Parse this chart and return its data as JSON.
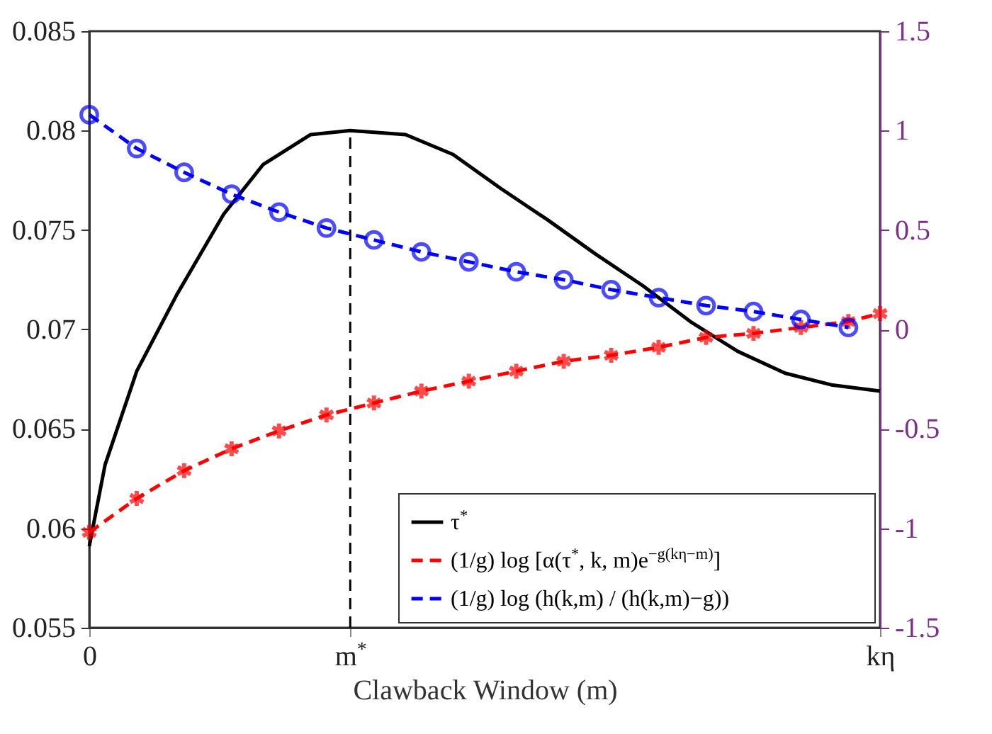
{
  "chart_data": {
    "type": "line",
    "xlabel": "Clawback Window (m)",
    "categories": [
      "0",
      null,
      null,
      null,
      null,
      null,
      null,
      null,
      null,
      null,
      null,
      null,
      null,
      null,
      null,
      null,
      null,
      null,
      null,
      null,
      null,
      null,
      null,
      null,
      null,
      null,
      null,
      null,
      null,
      null,
      null,
      null,
      null,
      "m$^{*}$",
      null,
      null,
      null,
      null,
      null,
      null,
      null,
      null,
      null,
      null,
      null,
      null,
      null,
      null,
      null,
      null,
      null,
      null,
      null,
      null,
      null,
      null,
      null,
      null,
      null,
      null,
      null,
      null,
      null,
      null,
      null,
      null,
      null,
      null,
      null,
      null,
      null,
      null,
      null,
      null,
      null,
      null,
      null,
      null,
      null,
      null,
      null,
      null,
      null,
      null,
      null,
      null,
      null,
      null,
      null,
      null,
      null,
      null,
      null,
      null,
      null,
      null,
      null,
      null,
      null,
      null,
      "kη"
    ],
    "ylim": [
      0.055,
      0.085
    ],
    "yticks": [
      0.055,
      0.06,
      0.065,
      0.07,
      0.075,
      0.08,
      0.085
    ],
    "y2lim": [
      -1.5,
      1.5
    ],
    "y2ticks": [
      -1.5,
      -1,
      -0.5,
      0,
      0.5,
      1,
      1.5
    ],
    "grid": false,
    "legend": "bottom right",
    "ref_lines": [
      {
        "axis": "x",
        "value": "m$^{*}$",
        "line_style": "dashed",
        "color": "#000000"
      }
    ],
    "series": [
      {
        "name": "τ$^{*}$",
        "color": "#000000",
        "marker": "none",
        "line_style": "solid",
        "values": [
          0.0591,
          null,
          0.0632,
          null,
          null,
          null,
          0.0679,
          null,
          null,
          null,
          null,
          0.0717,
          null,
          null,
          null,
          null,
          null,
          0.0758,
          null,
          null,
          null,
          null,
          0.0783,
          null,
          null,
          null,
          null,
          null,
          0.0798,
          null,
          null,
          null,
          null,
          0.08,
          null,
          null,
          null,
          null,
          null,
          null,
          0.0798,
          null,
          null,
          null,
          null,
          null,
          0.0788,
          null,
          null,
          null,
          null,
          null,
          0.0771,
          null,
          null,
          null,
          null,
          null,
          0.0755,
          null,
          null,
          null,
          null,
          null,
          0.0738,
          null,
          null,
          null,
          null,
          null,
          0.0722,
          null,
          null,
          null,
          null,
          null,
          0.0704,
          null,
          null,
          null,
          null,
          null,
          0.0689,
          null,
          null,
          null,
          null,
          null,
          0.0678,
          null,
          null,
          null,
          null,
          null,
          0.0672,
          null,
          null,
          null,
          null,
          null,
          0.0669
        ]
      },
      {
        "name": "(1/g) log [α(τ$^{*}$, k, m)e$^{−g(kη−m)}$]",
        "color": "#ff0000",
        "marker": "cross",
        "line_style": "dashed",
        "axis": "y2",
        "values": [
          -1.02,
          null,
          null,
          null,
          null,
          null,
          -0.85,
          null,
          null,
          null,
          null,
          null,
          -0.71,
          null,
          null,
          null,
          null,
          null,
          -0.6,
          null,
          null,
          null,
          null,
          null,
          -0.51,
          null,
          null,
          null,
          null,
          null,
          -0.43,
          null,
          null,
          null,
          null,
          null,
          -0.37,
          null,
          null,
          null,
          null,
          null,
          -0.31,
          null,
          null,
          null,
          null,
          null,
          -0.26,
          null,
          null,
          null,
          null,
          null,
          -0.21,
          null,
          null,
          null,
          null,
          null,
          -0.16,
          null,
          null,
          null,
          null,
          null,
          -0.13,
          null,
          null,
          null,
          null,
          null,
          -0.09,
          null,
          null,
          null,
          null,
          null,
          -0.04,
          null,
          null,
          null,
          null,
          null,
          -0.02,
          null,
          null,
          null,
          null,
          null,
          0.01,
          null,
          null,
          null,
          null,
          null,
          0.04,
          null,
          null,
          null,
          0.08
        ]
      },
      {
        "name": "(1/g) log (h(k,m) / (h(k,m)−g))",
        "color": "#0000ff",
        "marker": "circle",
        "line_style": "dashed",
        "axis": "y2",
        "values": [
          1.08,
          null,
          null,
          null,
          null,
          null,
          0.91,
          null,
          null,
          null,
          null,
          null,
          0.79,
          null,
          null,
          null,
          null,
          null,
          0.68,
          null,
          null,
          null,
          null,
          null,
          0.59,
          null,
          null,
          null,
          null,
          null,
          0.51,
          null,
          null,
          null,
          null,
          null,
          0.45,
          null,
          null,
          null,
          null,
          null,
          0.39,
          null,
          null,
          null,
          null,
          null,
          0.34,
          null,
          null,
          null,
          null,
          null,
          0.29,
          null,
          null,
          null,
          null,
          null,
          0.25,
          null,
          null,
          null,
          null,
          null,
          0.2,
          null,
          null,
          null,
          null,
          null,
          0.16,
          null,
          null,
          null,
          null,
          null,
          0.12,
          null,
          null,
          null,
          null,
          null,
          0.09,
          null,
          null,
          null,
          null,
          null,
          0.05,
          null,
          null,
          null,
          null,
          null,
          0.01,
          null,
          null,
          null,
          null
        ]
      }
    ]
  }
}
